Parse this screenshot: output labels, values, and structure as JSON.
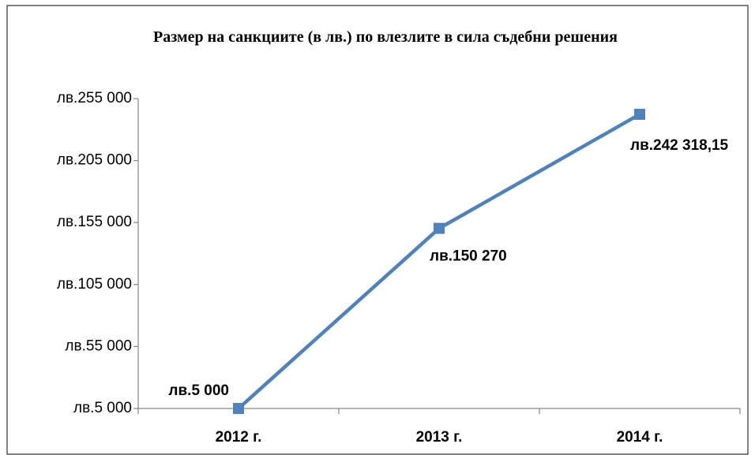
{
  "chart_data": {
    "type": "line",
    "title": "Размер на санкциите (в лв.) по влезлите в сила съдебни решения",
    "categories": [
      "2012 г.",
      "2013 г.",
      "2014 г."
    ],
    "series": [
      {
        "name": "Размер на санкциите",
        "color": "#4f81bd",
        "values": [
          5000,
          150270,
          242318.15
        ],
        "value_labels": [
          "лв.5 000",
          "лв.150 270",
          "лв.242 318,15"
        ]
      }
    ],
    "ylim": [
      5000,
      255000
    ],
    "yticks": [
      {
        "value": 5000,
        "label": "лв.5 000"
      },
      {
        "value": 55000,
        "label": "лв.55 000"
      },
      {
        "value": 105000,
        "label": "лв.105 000"
      },
      {
        "value": 155000,
        "label": "лв.155 000"
      },
      {
        "value": 205000,
        "label": "лв.205 000"
      },
      {
        "value": 255000,
        "label": "лв.255 000"
      }
    ],
    "grid": false
  }
}
